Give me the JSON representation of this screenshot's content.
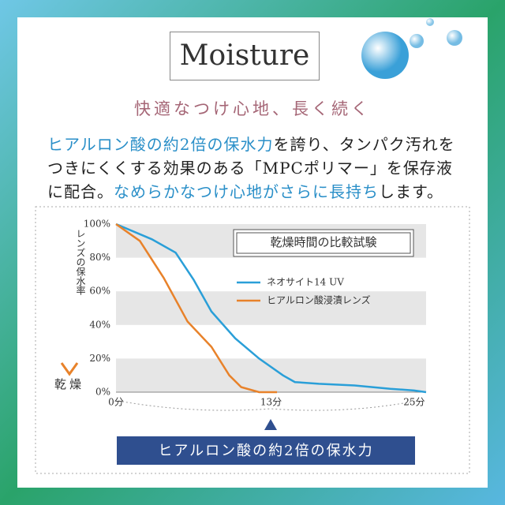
{
  "header": {
    "title": "Moisture",
    "subtitle": "快適なつけ心地、長く続く"
  },
  "body": {
    "lines": [
      [
        "ヒアルロン酸の約2倍の保水力",
        "を誇り、タンパク汚れを"
      ],
      [
        "つきにくくする効果のある「MPCポリマー」を保存液"
      ],
      [
        "に配合。",
        "なめらかなつけ心地がさらに長持ち",
        "します。"
      ]
    ]
  },
  "chart_data": {
    "type": "line",
    "title": "乾燥時間の比較試験",
    "y_label": "レンズの保水率",
    "y_bottom_label": "乾燥",
    "xlim": [
      0,
      26
    ],
    "xticks": [
      {
        "value": 0,
        "label": "0分"
      },
      {
        "value": 13,
        "label": "13分"
      },
      {
        "value": 25,
        "label": "25分"
      }
    ],
    "ylim": [
      0,
      100
    ],
    "yticks": [
      {
        "value": 0,
        "label": "0%"
      },
      {
        "value": 20,
        "label": "20%"
      },
      {
        "value": 40,
        "label": "40%"
      },
      {
        "value": 60,
        "label": "60%"
      },
      {
        "value": 80,
        "label": "80%"
      },
      {
        "value": 100,
        "label": "100%"
      }
    ],
    "grid": true,
    "series": [
      {
        "name": "ネオサイト14 UV",
        "color": "#2a9fd8",
        "x": [
          0,
          3,
          5,
          6.5,
          8,
          10,
          12,
          14,
          15,
          17,
          20,
          23,
          25,
          26
        ],
        "values": [
          100,
          91,
          83,
          67,
          48,
          32,
          20,
          10,
          6,
          5,
          4,
          2,
          1,
          0
        ]
      },
      {
        "name": "ヒアルロン酸浸漬レンズ",
        "color": "#e8822a",
        "x": [
          0,
          2,
          4,
          6,
          8,
          9.5,
          10.5,
          12,
          13.5
        ],
        "values": [
          100,
          90,
          68,
          42,
          27,
          10,
          3,
          0,
          0
        ]
      }
    ]
  },
  "footer": {
    "badge": "ヒアルロン酸の約2倍の保水力"
  }
}
